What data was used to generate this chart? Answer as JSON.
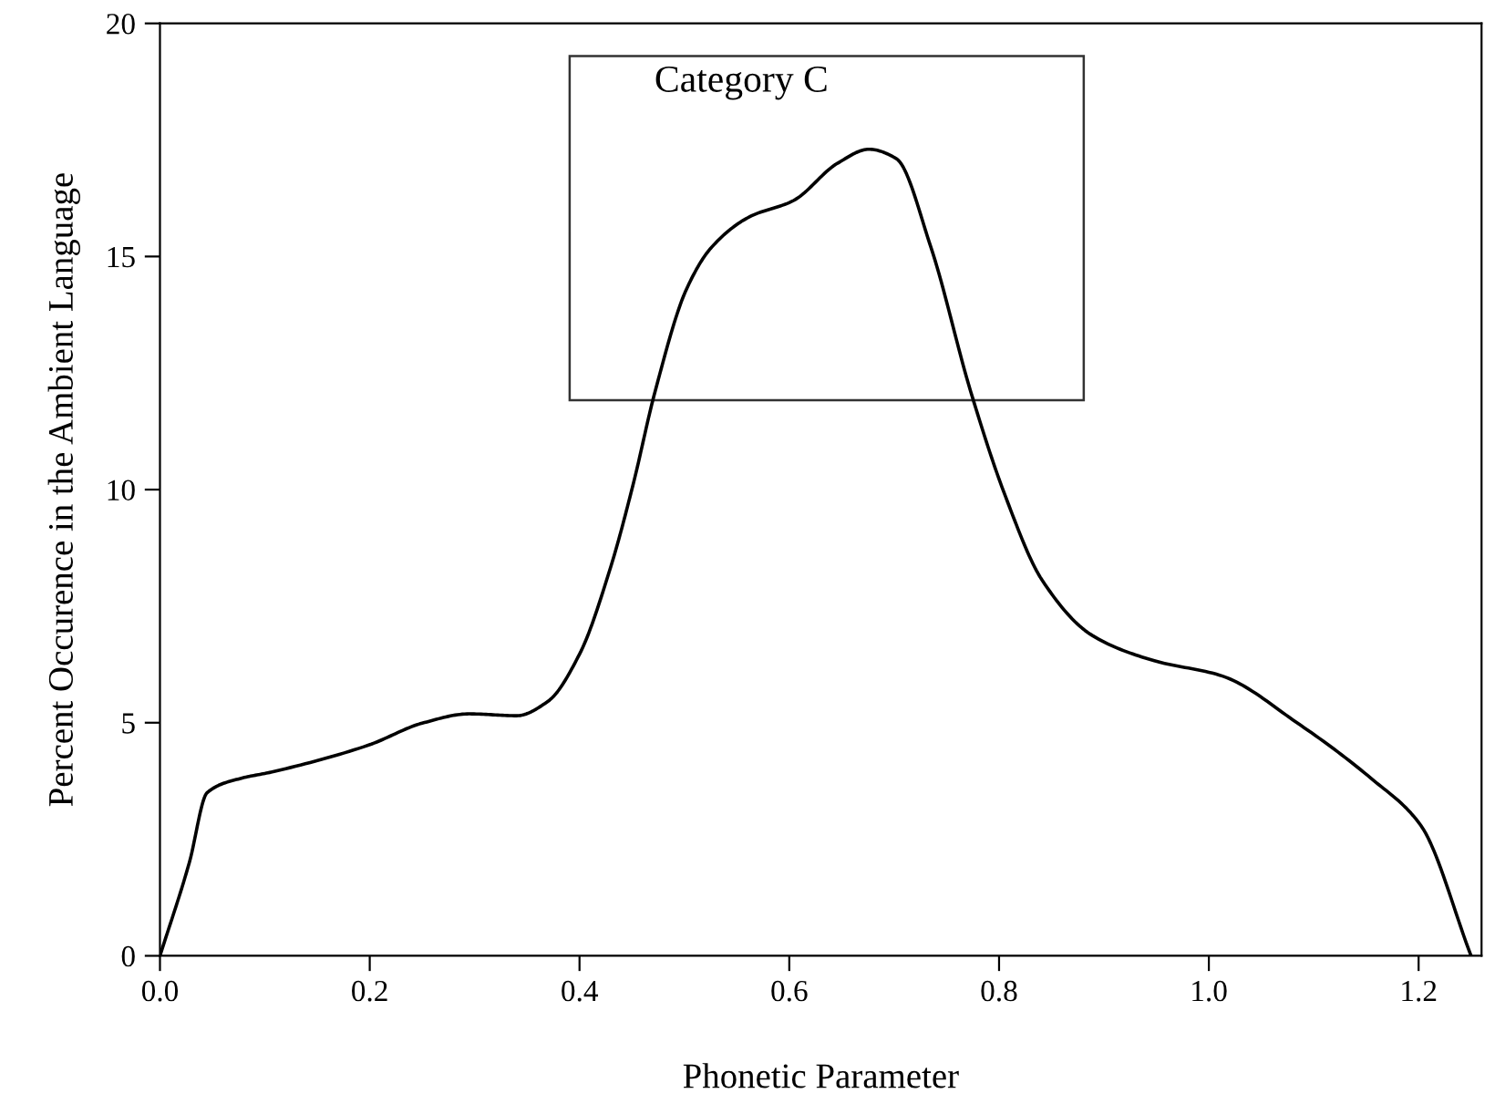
{
  "chart_data": {
    "type": "line",
    "xlabel": "Phonetic Parameter",
    "ylabel": "Percent Occurence in the Ambient Language",
    "annotations": [
      "Category C"
    ],
    "x": [
      0,
      0.028,
      0.045,
      0.076,
      0.106,
      0.199,
      0.25,
      0.295,
      0.34,
      0.37,
      0.4,
      0.43,
      0.451,
      0.472,
      0.502,
      0.526,
      0.562,
      0.604,
      0.646,
      0.676,
      0.702,
      0.735,
      0.773,
      0.806,
      0.841,
      0.889,
      0.948,
      1.013,
      1.084,
      1.155,
      1.202,
      1.25
    ],
    "series": [
      {
        "color": "#000000",
        "values": [
          0,
          2.0,
          3.5,
          3.8,
          3.94,
          4.52,
          4.99,
          5.19,
          5.15,
          5.46,
          6.47,
          8.36,
          10.1,
          12.1,
          14.3,
          15.2,
          15.85,
          16.2,
          17.0,
          17.3,
          17.1,
          15.2,
          12.1,
          9.86,
          8.06,
          6.87,
          6.33,
          6.0,
          5.0,
          3.8,
          2.8,
          0
        ]
      }
    ],
    "xlim": [
      0,
      1.26
    ],
    "ylim": [
      0,
      20
    ],
    "xticks": [
      {
        "value": 0,
        "label": "0.0"
      },
      0.2,
      0.4,
      0.6,
      0.8,
      {
        "value": 1,
        "label": "1.0"
      },
      1.2
    ],
    "yticks": [
      0,
      5,
      10,
      15,
      20
    ],
    "grid": false,
    "marker": "none",
    "line_style": "solid"
  }
}
